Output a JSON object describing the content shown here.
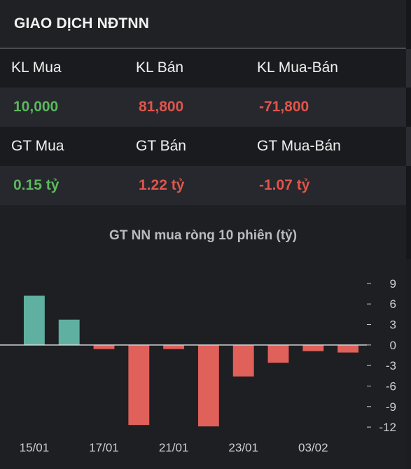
{
  "header": {
    "title": "GIAO DỊCH NĐTNN"
  },
  "volume": {
    "buy_label": "KL Mua",
    "sell_label": "KL Bán",
    "net_label": "KL Mua-Bán",
    "buy_value": "10,000",
    "sell_value": "81,800",
    "net_value": "-71,800"
  },
  "value": {
    "buy_label": "GT Mua",
    "sell_label": "GT Bán",
    "net_label": "GT Mua-Bán",
    "buy_value": "0.15 tỷ",
    "sell_value": "1.22 tỷ",
    "net_value": "-1.07 tỷ"
  },
  "colors": {
    "positive": "#5cb85c",
    "negative": "#e0554b",
    "bar_positive": "#5fb0a0",
    "bar_negative": "#e0605a"
  },
  "chart_data": {
    "type": "bar",
    "title": "GT NN mua ròng 10 phiên (tỷ)",
    "values": [
      7.2,
      3.7,
      -0.6,
      -11.7,
      -0.6,
      -11.9,
      -4.6,
      -2.6,
      -0.9,
      -1.1
    ],
    "x_tick_labels": [
      "15/01",
      "17/01",
      "21/01",
      "23/01",
      "03/02"
    ],
    "y_ticks": [
      9,
      6,
      3,
      0,
      -3,
      -6,
      -9,
      -12
    ],
    "ylim": [
      -12.5,
      9.5
    ],
    "grid": false
  }
}
